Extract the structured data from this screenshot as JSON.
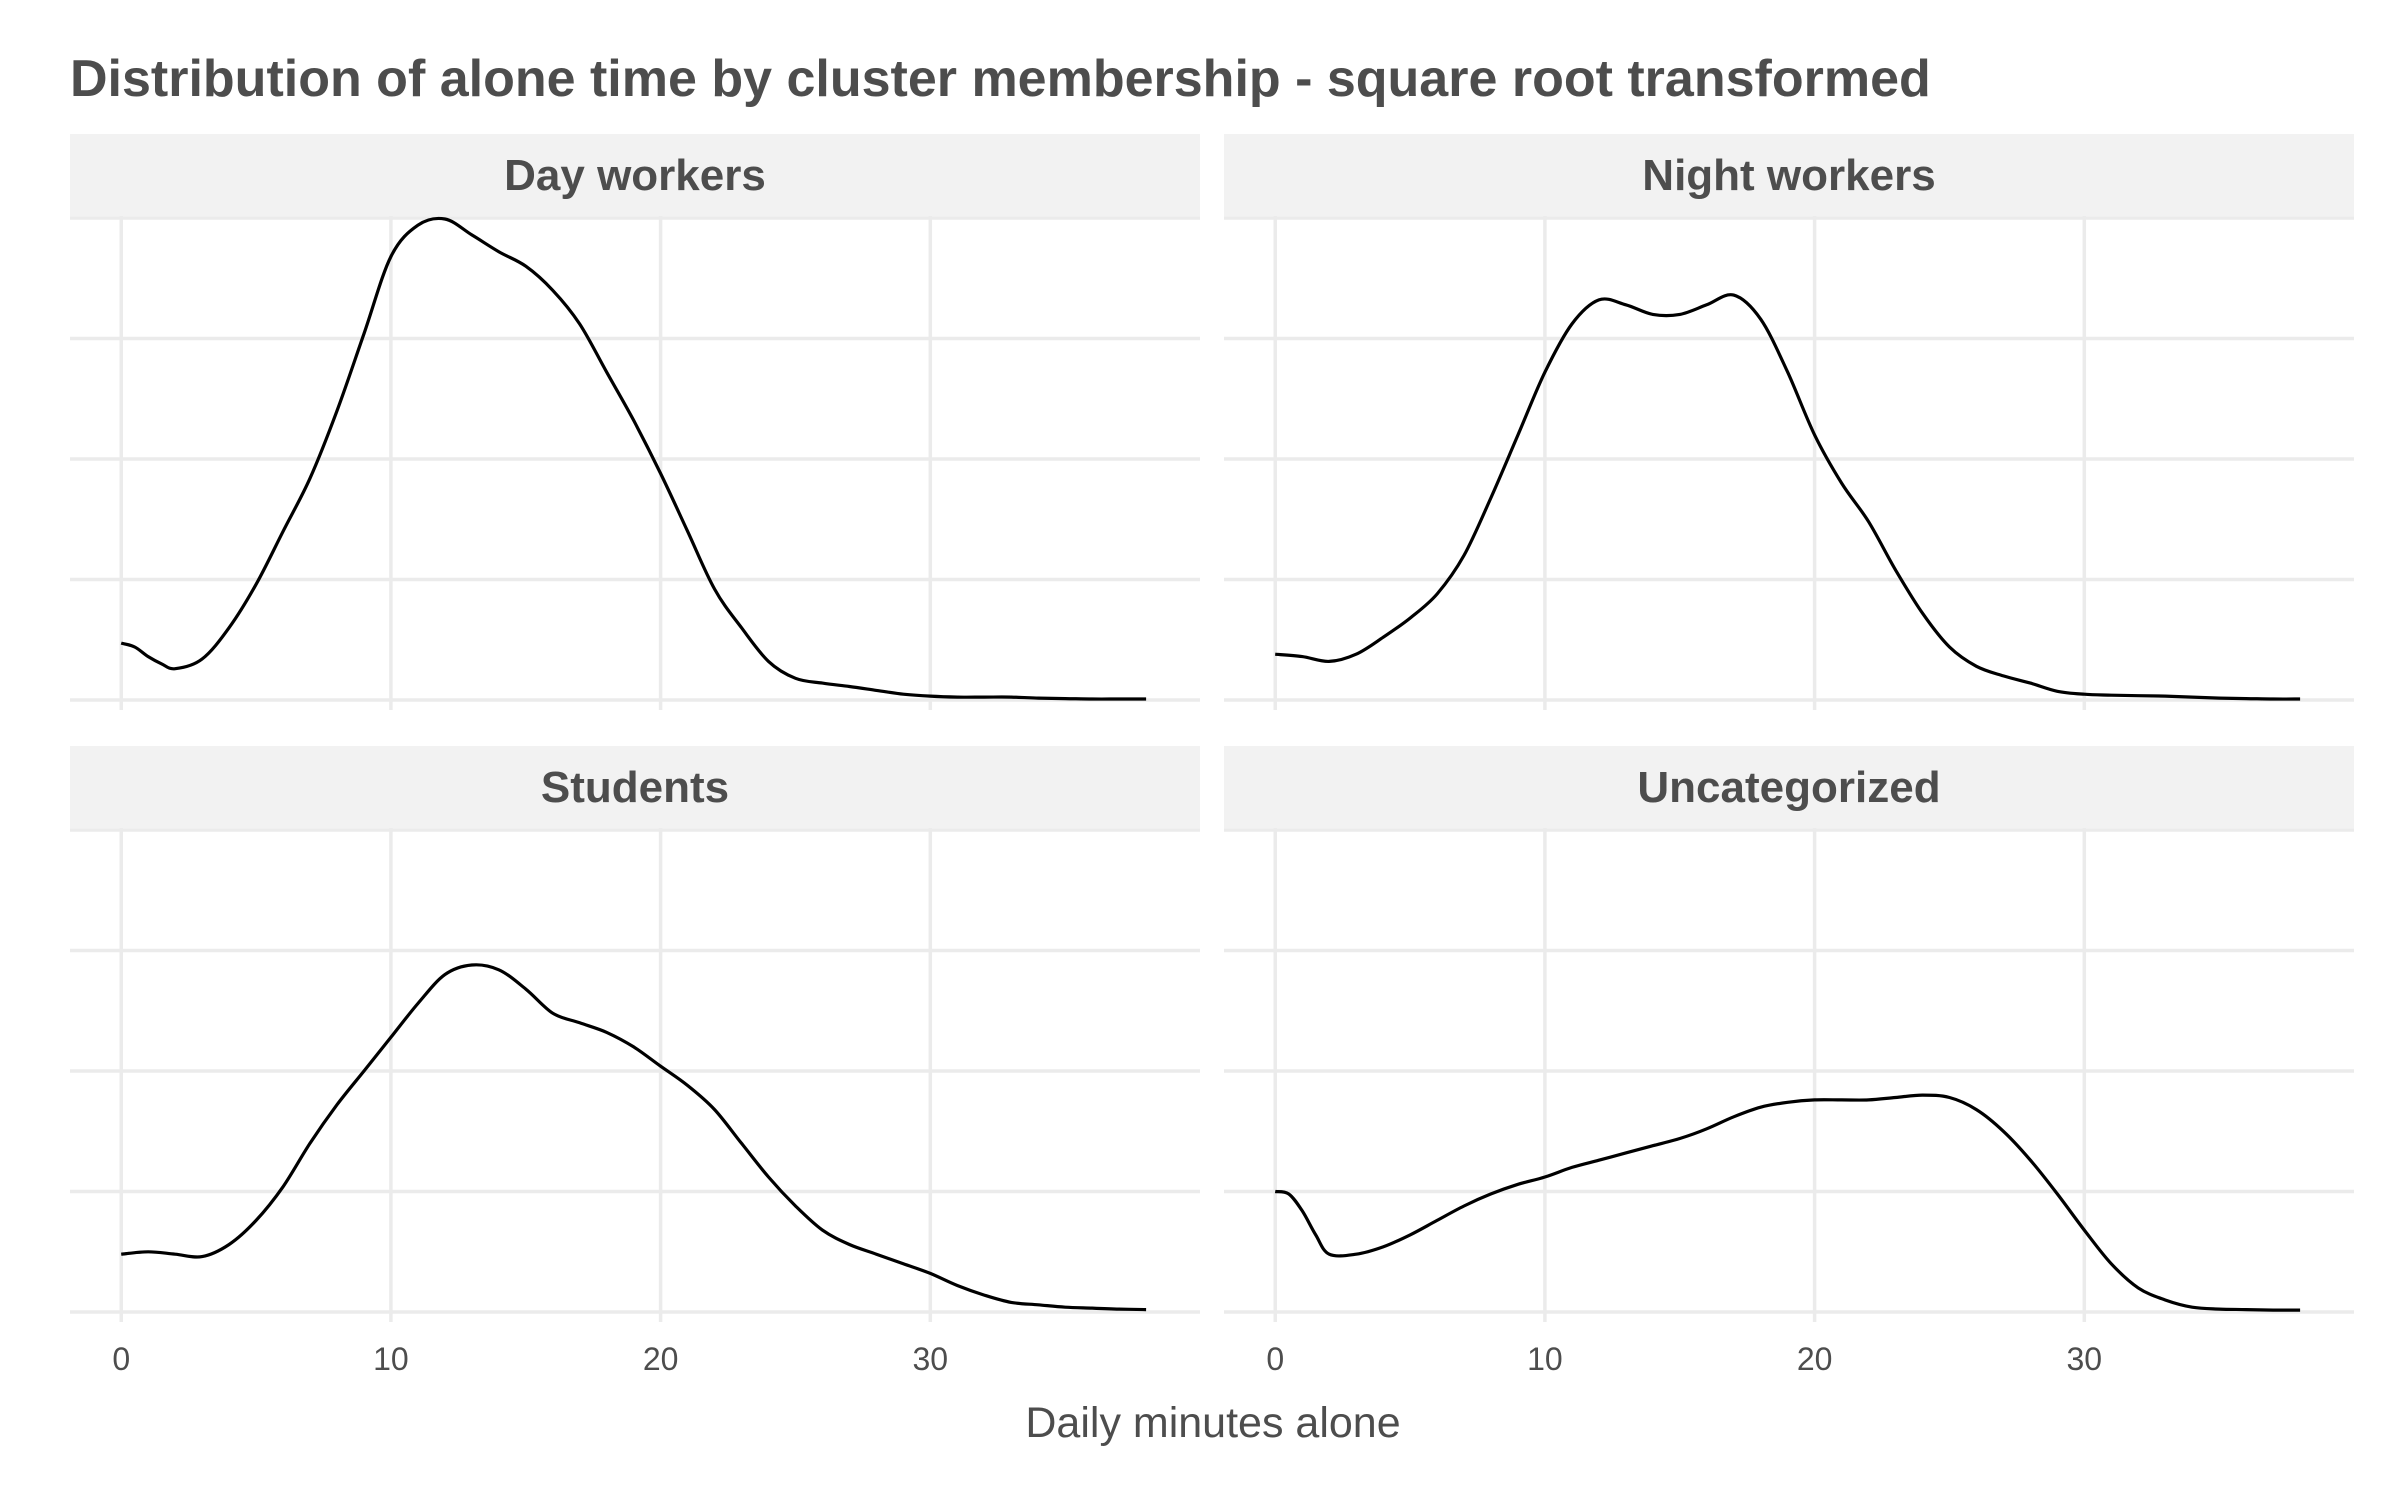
{
  "chart_data": {
    "type": "area",
    "title": "Distribution of alone time by cluster membership - square root transformed",
    "xlabel": "Daily minutes alone",
    "ylabel": "",
    "xlim": [
      -1.9,
      40.0
    ],
    "ylim": [
      0,
      1.0
    ],
    "x_ticks": [
      0,
      10,
      20,
      30
    ],
    "grid": true,
    "facets": [
      {
        "name": "Day workers",
        "x": [
          0,
          0.5,
          1,
          1.5,
          2,
          3,
          4,
          5,
          6,
          7,
          8,
          9,
          10,
          11,
          12,
          13,
          14,
          15,
          16,
          17,
          18,
          19,
          20,
          21,
          22,
          23,
          24,
          25,
          26,
          27,
          28,
          29,
          30,
          31,
          32,
          33,
          34,
          35,
          36,
          37,
          38
        ],
        "values": [
          0.118,
          0.11,
          0.09,
          0.075,
          0.065,
          0.085,
          0.15,
          0.24,
          0.35,
          0.46,
          0.6,
          0.76,
          0.92,
          0.985,
          0.998,
          0.965,
          0.93,
          0.9,
          0.85,
          0.78,
          0.68,
          0.58,
          0.47,
          0.35,
          0.23,
          0.15,
          0.08,
          0.045,
          0.035,
          0.028,
          0.02,
          0.012,
          0.008,
          0.006,
          0.006,
          0.006,
          0.004,
          0.003,
          0.002,
          0.002,
          0.002
        ]
      },
      {
        "name": "Night workers",
        "x": [
          0,
          1,
          2,
          3,
          4,
          5,
          6,
          7,
          8,
          9,
          10,
          11,
          12,
          13,
          14,
          15,
          16,
          17,
          18,
          19,
          20,
          21,
          22,
          23,
          24,
          25,
          26,
          27,
          28,
          29,
          30,
          31,
          32,
          33,
          34,
          35,
          36,
          37,
          38
        ],
        "values": [
          0.095,
          0.09,
          0.08,
          0.095,
          0.13,
          0.17,
          0.22,
          0.3,
          0.42,
          0.55,
          0.68,
          0.78,
          0.83,
          0.82,
          0.8,
          0.8,
          0.82,
          0.84,
          0.79,
          0.68,
          0.55,
          0.45,
          0.37,
          0.27,
          0.18,
          0.11,
          0.07,
          0.05,
          0.035,
          0.018,
          0.012,
          0.01,
          0.009,
          0.008,
          0.006,
          0.004,
          0.003,
          0.002,
          0.002
        ]
      },
      {
        "name": "Students",
        "x": [
          0,
          1,
          2,
          3,
          4,
          5,
          6,
          7,
          8,
          9,
          10,
          11,
          12,
          13,
          14,
          15,
          16,
          17,
          18,
          19,
          20,
          21,
          22,
          23,
          24,
          25,
          26,
          27,
          28,
          29,
          30,
          31,
          32,
          33,
          34,
          35,
          36,
          37,
          38
        ],
        "values": [
          0.12,
          0.125,
          0.12,
          0.115,
          0.14,
          0.19,
          0.26,
          0.35,
          0.43,
          0.5,
          0.57,
          0.64,
          0.7,
          0.72,
          0.71,
          0.67,
          0.62,
          0.6,
          0.58,
          0.55,
          0.51,
          0.47,
          0.42,
          0.35,
          0.28,
          0.22,
          0.17,
          0.14,
          0.12,
          0.1,
          0.08,
          0.055,
          0.035,
          0.02,
          0.015,
          0.01,
          0.008,
          0.006,
          0.005
        ]
      },
      {
        "name": "Uncategorized",
        "x": [
          0,
          0.5,
          1,
          1.5,
          2,
          3,
          4,
          5,
          6,
          7,
          8,
          9,
          10,
          11,
          12,
          13,
          14,
          15,
          16,
          17,
          18,
          19,
          20,
          21,
          22,
          23,
          24,
          25,
          26,
          27,
          28,
          29,
          30,
          31,
          32,
          33,
          34,
          35,
          36,
          37,
          38
        ],
        "values": [
          0.25,
          0.245,
          0.21,
          0.16,
          0.12,
          0.12,
          0.135,
          0.16,
          0.19,
          0.22,
          0.245,
          0.265,
          0.28,
          0.3,
          0.315,
          0.33,
          0.345,
          0.36,
          0.38,
          0.405,
          0.425,
          0.435,
          0.44,
          0.44,
          0.44,
          0.445,
          0.45,
          0.445,
          0.42,
          0.375,
          0.315,
          0.245,
          0.17,
          0.1,
          0.05,
          0.025,
          0.01,
          0.006,
          0.005,
          0.004,
          0.004
        ]
      }
    ]
  }
}
